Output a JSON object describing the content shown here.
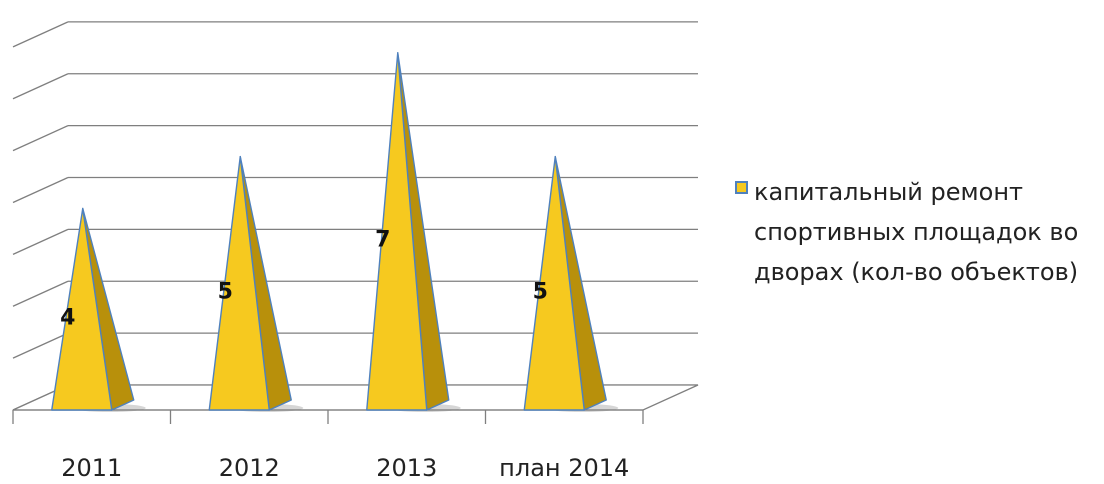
{
  "chart_data": {
    "type": "bar",
    "style": "3d-pyramid",
    "categories": [
      "2011",
      "2012",
      "2013",
      "план 2014"
    ],
    "series": [
      {
        "name": "капитальный ремонт спортивных площадок во дворах (кол-во объектов)",
        "values": [
          4,
          5,
          7,
          5
        ]
      }
    ],
    "data_labels": [
      "4",
      "5",
      "7",
      "5"
    ],
    "ylim": [
      0,
      8
    ],
    "grid": true,
    "legend": "right",
    "colors": {
      "front": "#f6c91f",
      "side": "#b8900b",
      "edge": "#4f81bd",
      "grid": "#7f7f7f",
      "text": "#111111"
    }
  }
}
